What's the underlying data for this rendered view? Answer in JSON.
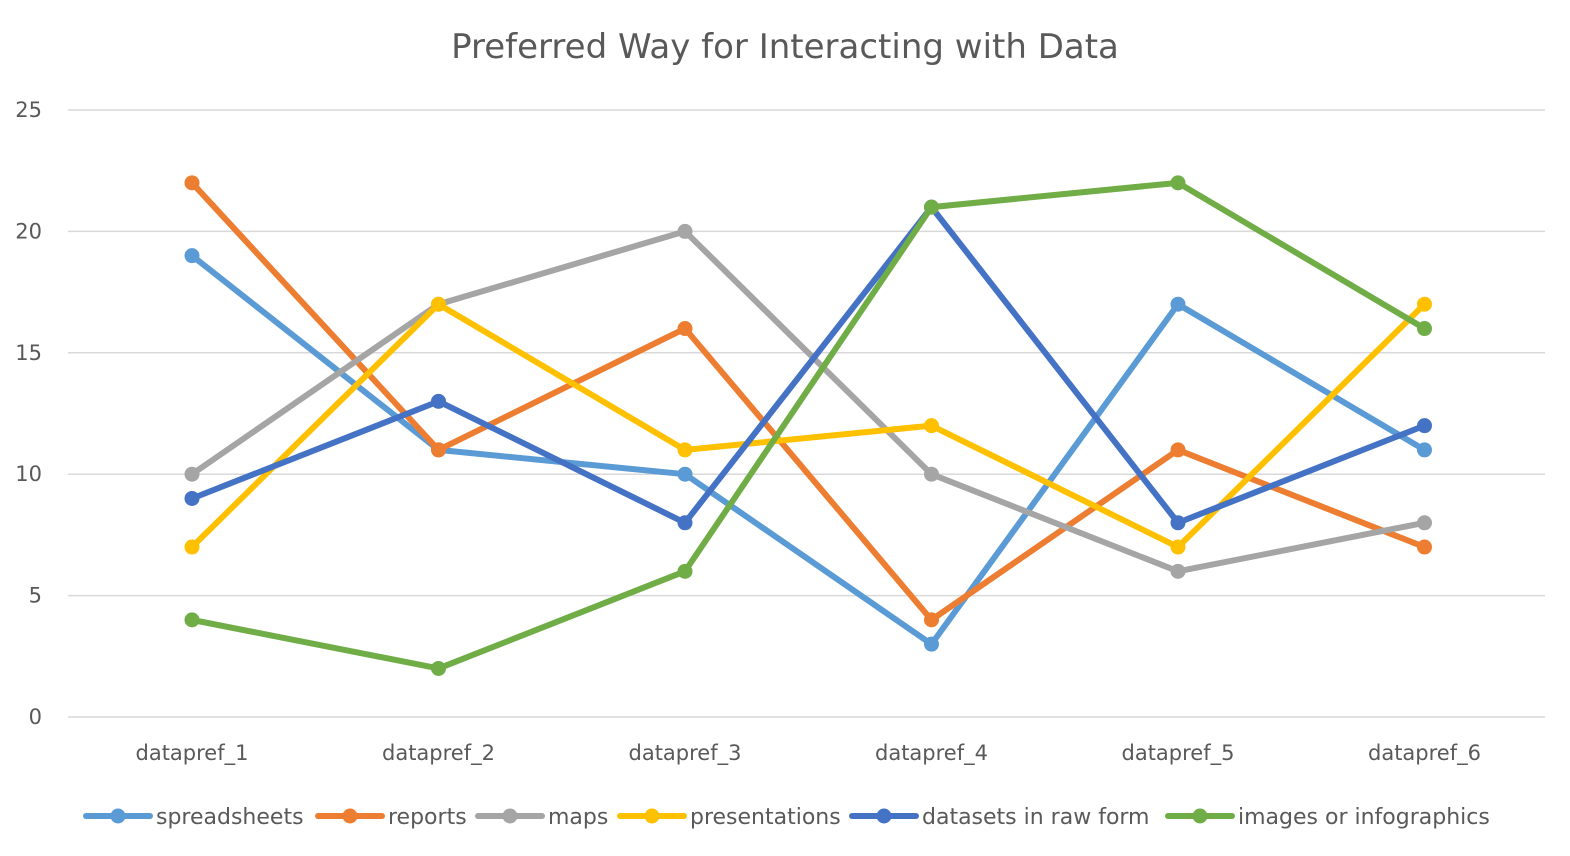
{
  "chart_data": {
    "type": "line",
    "title": "Preferred Way for Interacting with Data",
    "xlabel": "",
    "ylabel": "",
    "categories": [
      "datapref_1",
      "datapref_2",
      "datapref_3",
      "datapref_4",
      "datapref_5",
      "datapref_6"
    ],
    "ylim": [
      0,
      25
    ],
    "yticks": [
      0,
      5,
      10,
      15,
      20,
      25
    ],
    "grid": true,
    "legend_position": "bottom",
    "series": [
      {
        "name": "spreadsheets",
        "color": "#5b9bd5",
        "values": [
          19,
          11,
          10,
          3,
          17,
          11
        ]
      },
      {
        "name": "reports",
        "color": "#ed7d31",
        "values": [
          22,
          11,
          16,
          4,
          11,
          7
        ]
      },
      {
        "name": "maps",
        "color": "#a5a5a5",
        "values": [
          10,
          17,
          20,
          10,
          6,
          8
        ]
      },
      {
        "name": "presentations",
        "color": "#ffc000",
        "values": [
          7,
          17,
          11,
          12,
          7,
          17
        ]
      },
      {
        "name": "datasets in raw form",
        "color": "#4472c4",
        "values": [
          9,
          13,
          8,
          21,
          8,
          12
        ]
      },
      {
        "name": "images or infographics",
        "color": "#70ad47",
        "values": [
          4,
          2,
          6,
          21,
          22,
          16
        ]
      }
    ]
  }
}
